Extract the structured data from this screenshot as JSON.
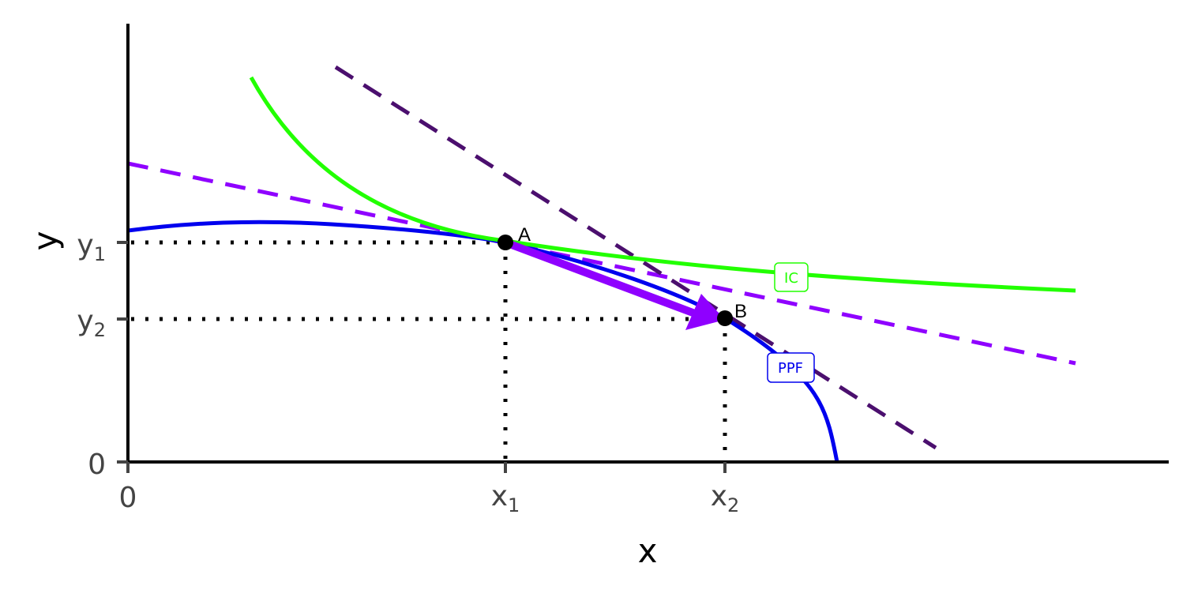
{
  "axes": {
    "x_label": "x",
    "y_label": "y"
  },
  "x_ticks": [
    {
      "text": "0"
    },
    {
      "text": "x",
      "sub": "1"
    },
    {
      "text": "x",
      "sub": "2"
    }
  ],
  "y_ticks": [
    {
      "text": "0"
    },
    {
      "text": "y",
      "sub": "1"
    },
    {
      "text": "y",
      "sub": "2"
    }
  ],
  "points": [
    {
      "label": "A"
    },
    {
      "label": "B"
    }
  ],
  "curves": [
    {
      "label": "IC"
    },
    {
      "label": "PPF"
    }
  ]
}
